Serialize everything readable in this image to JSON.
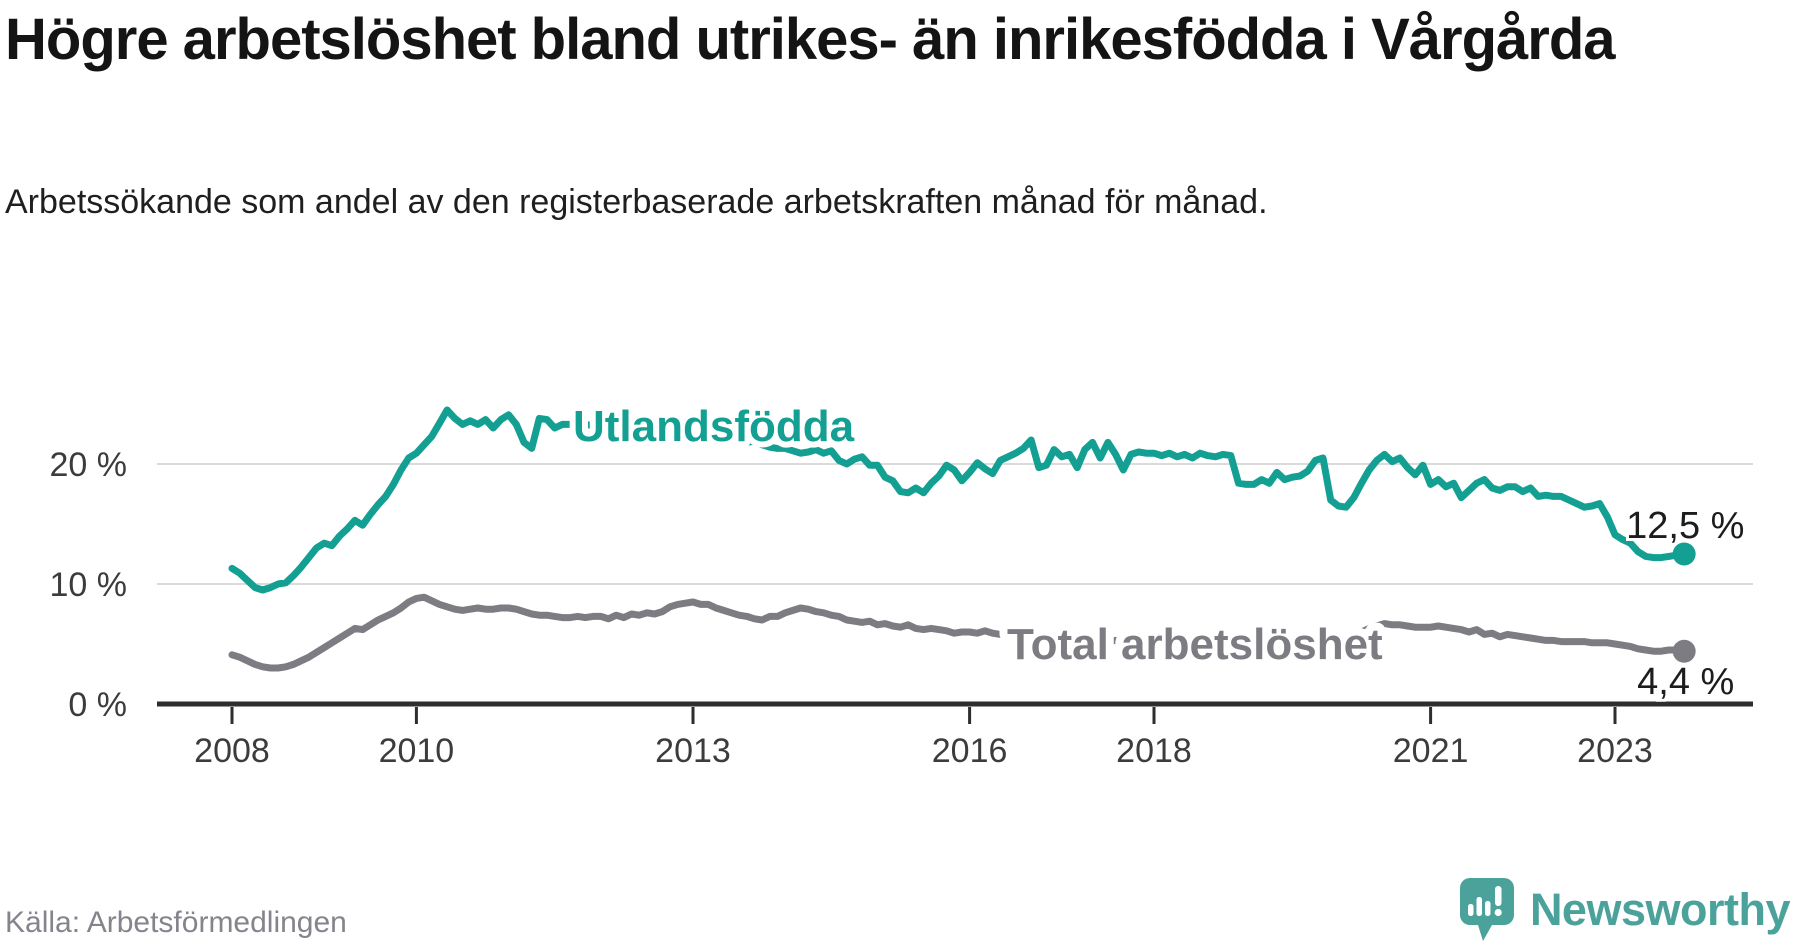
{
  "title": "Högre arbetslöshet bland utrikes- än inrikesfödda i Vårgårda",
  "subtitle": "Arbetssökande som andel av den registerbaserade arbetskraften månad för månad.",
  "source": {
    "text": "Källa: Arbetsförmedlingen"
  },
  "branding": {
    "name": "Newsworthy",
    "icon": "newsworthy-speech-bubble-chart-icon",
    "logo_color": "#4BA29B"
  },
  "colors": {
    "foreign_born_line": "#13A093",
    "total_line": "#7C7C82",
    "gridline": "#DBDBDB",
    "axis": "#2E2E2E",
    "tick_text": "#3C3C3C",
    "value_label_text": "#1D1D1D",
    "background": "#FFFFFF"
  },
  "chart_data": {
    "type": "line",
    "frequency": "monthly",
    "start": "2008-01",
    "end": "2023-10",
    "unit": "%",
    "decimal_style": "comma",
    "grid": "horizontal-only",
    "ylim": [
      0,
      27
    ],
    "y_axis_tick_values": [
      0,
      10,
      20
    ],
    "y_axis_tick_labels": [
      "0 %",
      "10 %",
      "20 %"
    ],
    "x_axis_tick_labels": [
      "2008",
      "2010",
      "2013",
      "2016",
      "2018",
      "2021",
      "2023"
    ],
    "series": [
      {
        "name": "Utlandsfödda",
        "color": "#13A093",
        "end_label": "12,5 %",
        "last_value": 12.5,
        "values": [
          11.3,
          10.9,
          10.3,
          9.7,
          9.5,
          9.7,
          10.0,
          10.1,
          10.7,
          11.4,
          12.2,
          13.0,
          13.4,
          13.2,
          14.0,
          14.6,
          15.3,
          14.9,
          15.8,
          16.6,
          17.3,
          18.3,
          19.5,
          20.5,
          20.9,
          21.6,
          22.3,
          23.4,
          24.5,
          23.8,
          23.3,
          23.6,
          23.3,
          23.7,
          23.0,
          23.7,
          24.1,
          23.3,
          21.8,
          21.3,
          23.8,
          23.7,
          23.0,
          23.3,
          23.3,
          23.2,
          23.3,
          23.2,
          23.3,
          23.1,
          23.4,
          23.2,
          23.3,
          23.1,
          23.0,
          23.2,
          23.0,
          22.8,
          22.9,
          22.7,
          22.8,
          23.0,
          22.7,
          22.5,
          22.3,
          22.2,
          22.0,
          21.8,
          21.9,
          21.6,
          21.4,
          21.3,
          21.3,
          21.1,
          20.9,
          21.0,
          21.2,
          20.9,
          21.1,
          20.3,
          20.0,
          20.4,
          20.6,
          19.9,
          19.9,
          18.9,
          18.6,
          17.7,
          17.6,
          18.0,
          17.6,
          18.4,
          19.0,
          19.9,
          19.5,
          18.6,
          19.3,
          20.1,
          19.6,
          19.2,
          20.3,
          20.6,
          20.9,
          21.3,
          22.0,
          19.7,
          19.9,
          21.2,
          20.6,
          20.8,
          19.7,
          21.2,
          21.8,
          20.5,
          21.8,
          20.8,
          19.5,
          20.8,
          21.0,
          20.9,
          20.9,
          20.7,
          20.9,
          20.6,
          20.8,
          20.5,
          20.9,
          20.7,
          20.6,
          20.8,
          20.7,
          18.4,
          18.3,
          18.3,
          18.7,
          18.4,
          19.3,
          18.7,
          18.9,
          19.0,
          19.4,
          20.3,
          20.5,
          17.0,
          16.5,
          16.4,
          17.2,
          18.4,
          19.5,
          20.3,
          20.8,
          20.2,
          20.5,
          19.7,
          19.1,
          19.9,
          18.3,
          18.7,
          18.1,
          18.4,
          17.2,
          17.8,
          18.4,
          18.7,
          18.0,
          17.8,
          18.1,
          18.1,
          17.7,
          18.0,
          17.3,
          17.4,
          17.3,
          17.3,
          17.0,
          16.7,
          16.4,
          16.5,
          16.7,
          15.6,
          14.1,
          13.7,
          13.4,
          12.7,
          12.3,
          12.2,
          12.2,
          12.3,
          12.4,
          12.5
        ]
      },
      {
        "name": "Total arbetslöshet",
        "color": "#7C7C82",
        "end_label": "4,4 %",
        "last_value": 4.4,
        "values": [
          4.1,
          3.9,
          3.6,
          3.3,
          3.1,
          3.0,
          3.0,
          3.1,
          3.3,
          3.6,
          3.9,
          4.3,
          4.7,
          5.1,
          5.5,
          5.9,
          6.3,
          6.2,
          6.6,
          7.0,
          7.3,
          7.6,
          8.0,
          8.5,
          8.8,
          8.9,
          8.6,
          8.3,
          8.1,
          7.9,
          7.8,
          7.9,
          8.0,
          7.9,
          7.9,
          8.0,
          8.0,
          7.9,
          7.7,
          7.5,
          7.4,
          7.4,
          7.3,
          7.2,
          7.2,
          7.3,
          7.2,
          7.3,
          7.3,
          7.1,
          7.4,
          7.2,
          7.5,
          7.4,
          7.6,
          7.5,
          7.7,
          8.1,
          8.3,
          8.4,
          8.5,
          8.3,
          8.3,
          8.0,
          7.8,
          7.6,
          7.4,
          7.3,
          7.1,
          7.0,
          7.3,
          7.3,
          7.6,
          7.8,
          8.0,
          7.9,
          7.7,
          7.6,
          7.4,
          7.3,
          7.0,
          6.9,
          6.8,
          6.9,
          6.6,
          6.7,
          6.5,
          6.4,
          6.6,
          6.3,
          6.2,
          6.3,
          6.2,
          6.1,
          5.9,
          6.0,
          6.0,
          5.9,
          6.1,
          5.9,
          5.8,
          5.8,
          5.7,
          5.8,
          5.7,
          5.6,
          5.5,
          5.6,
          5.5,
          5.5,
          5.4,
          5.4,
          5.3,
          5.3,
          5.2,
          5.3,
          5.2,
          5.1,
          5.1,
          5.1,
          5.0,
          5.0,
          4.9,
          4.9,
          4.8,
          4.8,
          4.7,
          4.8,
          4.7,
          4.7,
          4.6,
          4.7,
          4.7,
          4.7,
          4.7,
          4.8,
          4.8,
          4.9,
          4.9,
          5.0,
          5.0,
          5.1,
          5.0,
          5.1,
          5.2,
          5.3,
          5.5,
          6.0,
          6.3,
          6.5,
          6.7,
          6.6,
          6.6,
          6.5,
          6.4,
          6.4,
          6.4,
          6.5,
          6.4,
          6.3,
          6.2,
          6.0,
          6.2,
          5.8,
          5.9,
          5.6,
          5.8,
          5.7,
          5.6,
          5.5,
          5.4,
          5.3,
          5.3,
          5.2,
          5.2,
          5.2,
          5.2,
          5.1,
          5.1,
          5.1,
          5.0,
          4.9,
          4.8,
          4.6,
          4.5,
          4.4,
          4.4,
          4.5,
          4.5,
          4.4
        ]
      }
    ]
  }
}
